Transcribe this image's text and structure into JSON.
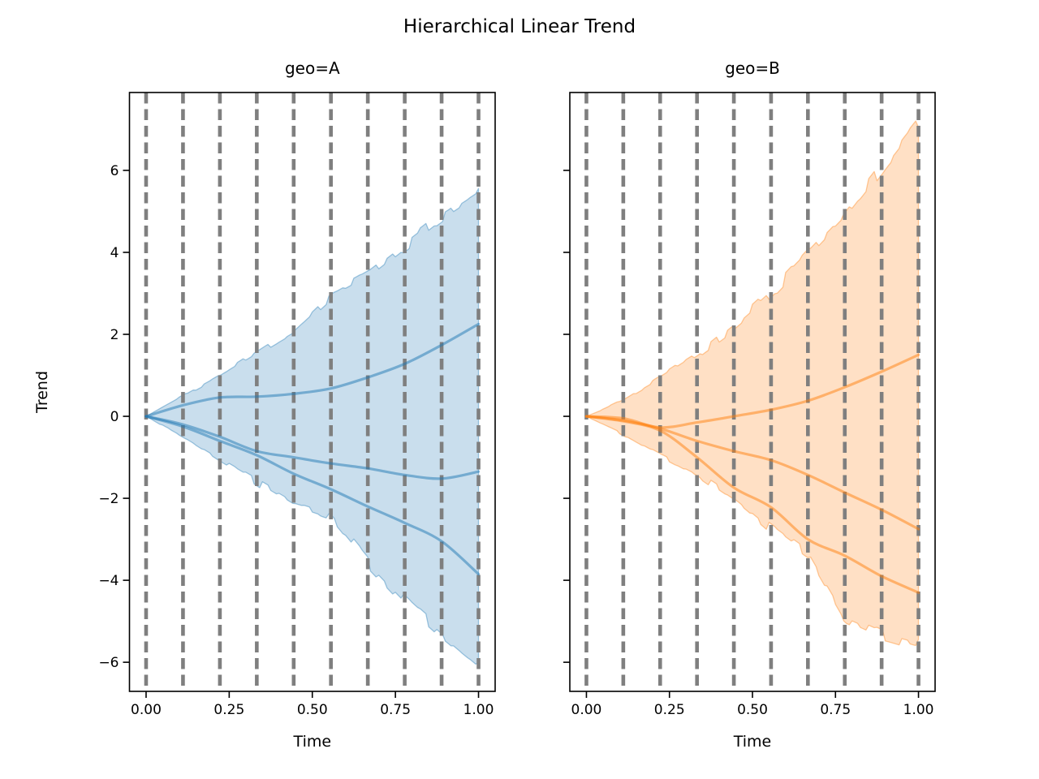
{
  "figure": {
    "title": "Hierarchical Linear Trend",
    "background": "#ffffff"
  },
  "chart_data": [
    {
      "type": "area",
      "geo": "A",
      "title": "geo=A",
      "xlabel": "Time",
      "ylabel": "Trend",
      "color": "#1f77b4",
      "grid_color": "#7f7f7f",
      "grid": "vertical-dashed",
      "legend": "none",
      "xlim": [
        -0.05,
        1.05
      ],
      "ylim": [
        -6.71,
        7.9
      ],
      "x": [
        0,
        0.111,
        0.222,
        0.333,
        0.444,
        0.556,
        0.667,
        0.778,
        0.889,
        1.0
      ],
      "changepoints": [
        0,
        0.111,
        0.222,
        0.333,
        0.444,
        0.556,
        0.667,
        0.778,
        0.889,
        1.0
      ],
      "band_upper": [
        0,
        0.5,
        1.0,
        1.55,
        2.1,
        2.95,
        3.45,
        4.15,
        4.85,
        5.45
      ],
      "band_lower": [
        0,
        -0.5,
        -1.05,
        -1.6,
        -2.15,
        -2.45,
        -3.55,
        -4.5,
        -5.3,
        -6.05
      ],
      "series": [
        {
          "name": "trend-sample-1",
          "values": [
            0,
            0.27,
            0.46,
            0.48,
            0.55,
            0.68,
            0.95,
            1.28,
            1.74,
            2.25
          ]
        },
        {
          "name": "trend-sample-2",
          "values": [
            0,
            -0.2,
            -0.5,
            -0.85,
            -1.0,
            -1.15,
            -1.27,
            -1.43,
            -1.52,
            -1.35
          ]
        },
        {
          "name": "trend-sample-3",
          "values": [
            0,
            -0.25,
            -0.6,
            -0.95,
            -1.4,
            -1.78,
            -2.2,
            -2.6,
            -3.05,
            -3.85
          ]
        }
      ],
      "xticks": {
        "values": [
          0,
          0.25,
          0.5,
          0.75,
          1.0
        ],
        "labels": [
          "0.00",
          "0.25",
          "0.50",
          "0.75",
          "1.00"
        ]
      },
      "yticks": {
        "values": [
          6,
          4,
          2,
          0,
          -2,
          -4,
          -6
        ],
        "labels": [
          "6",
          "4",
          "2",
          "0",
          "−2",
          "−4",
          "−6"
        ],
        "show_labels": true
      }
    },
    {
      "type": "area",
      "geo": "B",
      "title": "geo=B",
      "xlabel": "Time",
      "ylabel": "",
      "color": "#ff7f0e",
      "grid_color": "#7f7f7f",
      "grid": "vertical-dashed",
      "legend": "none",
      "xlim": [
        -0.05,
        1.05
      ],
      "ylim": [
        -6.71,
        7.9
      ],
      "x": [
        0,
        0.111,
        0.222,
        0.333,
        0.444,
        0.556,
        0.667,
        0.778,
        0.889,
        1.0
      ],
      "changepoints": [
        0,
        0.111,
        0.222,
        0.333,
        0.444,
        0.556,
        0.667,
        0.778,
        0.889,
        1.0
      ],
      "band_upper": [
        0,
        0.4,
        0.95,
        1.5,
        2.2,
        3.0,
        3.95,
        4.9,
        6.05,
        7.2
      ],
      "band_lower": [
        0,
        -0.45,
        -0.95,
        -1.4,
        -2.0,
        -2.75,
        -3.4,
        -4.95,
        -5.35,
        -5.6
      ],
      "series": [
        {
          "name": "trend-sample-1",
          "values": [
            0,
            -0.05,
            -0.27,
            -0.15,
            0.0,
            0.16,
            0.38,
            0.71,
            1.09,
            1.5
          ]
        },
        {
          "name": "trend-sample-2",
          "values": [
            0,
            -0.1,
            -0.3,
            -0.6,
            -0.85,
            -1.07,
            -1.43,
            -1.86,
            -2.28,
            -2.75
          ]
        },
        {
          "name": "trend-sample-3",
          "values": [
            0,
            -0.12,
            -0.35,
            -1.0,
            -1.74,
            -2.22,
            -3.0,
            -3.4,
            -3.9,
            -4.3
          ]
        }
      ],
      "xticks": {
        "values": [
          0,
          0.25,
          0.5,
          0.75,
          1.0
        ],
        "labels": [
          "0.00",
          "0.25",
          "0.50",
          "0.75",
          "1.00"
        ]
      },
      "yticks": {
        "values": [
          6,
          4,
          2,
          0,
          -2,
          -4,
          -6
        ],
        "labels": [
          "6",
          "4",
          "2",
          "0",
          "−2",
          "−4",
          "−6"
        ],
        "show_labels": false
      }
    }
  ]
}
